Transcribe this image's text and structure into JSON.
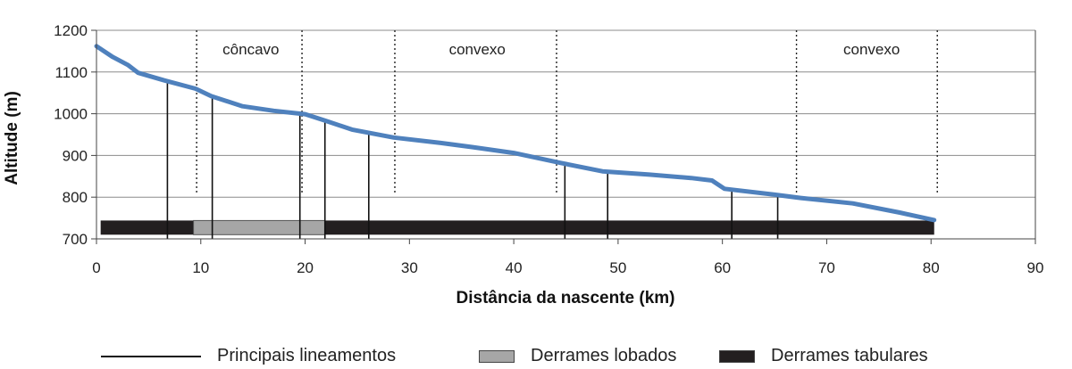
{
  "chart_data": {
    "type": "line",
    "xlabel": "Distância da nascente (km)",
    "ylabel": "Altitude (m)",
    "xlim": [
      0,
      90
    ],
    "ylim": [
      700,
      1200
    ],
    "xticks": [
      0,
      10,
      20,
      30,
      40,
      50,
      60,
      70,
      80,
      90
    ],
    "yticks": [
      700,
      800,
      900,
      1000,
      1100,
      1200
    ],
    "grid": true,
    "colors": {
      "profile": "#4f81bd",
      "tabulares": "#231f20",
      "lobados": "#a6a6a6",
      "lineamentos": "#111111",
      "grid": "#8c8c8c"
    },
    "profile": {
      "x": [
        0,
        1.5,
        3,
        4,
        6.5,
        9.5,
        11,
        14,
        17,
        20,
        22,
        24.5,
        28.5,
        33,
        36,
        40,
        44.5,
        48.5,
        53,
        57,
        59,
        60.2,
        65,
        67.5,
        72.5,
        77,
        80.3
      ],
      "y": [
        1162,
        1137,
        1117,
        1098,
        1080,
        1060,
        1042,
        1018,
        1007,
        999,
        983,
        962,
        943,
        930,
        920,
        906,
        882,
        862,
        854,
        846,
        840,
        820,
        806,
        798,
        785,
        763,
        745
      ]
    },
    "lineamentos": [
      {
        "x": 6.8,
        "top": 1078
      },
      {
        "x": 11.1,
        "top": 1041
      },
      {
        "x": 19.5,
        "top": 999
      },
      {
        "x": 21.9,
        "top": 983
      },
      {
        "x": 26.1,
        "top": 954
      },
      {
        "x": 44.9,
        "top": 880
      },
      {
        "x": 49.0,
        "top": 862
      },
      {
        "x": 60.9,
        "top": 818
      },
      {
        "x": 65.3,
        "top": 804
      }
    ],
    "derrames_tabulares": {
      "from": 0.4,
      "to": 80.3,
      "bottom": 710,
      "top": 744
    },
    "derrames_lobados": {
      "from": 9.3,
      "to": 21.9,
      "bottom": 710,
      "top": 744
    },
    "segment_dividers": [
      9.6,
      19.7,
      28.6,
      44.1,
      67.1,
      80.6
    ],
    "segments": [
      {
        "label": "côncavo",
        "x": 14.8
      },
      {
        "label": "convexo",
        "x": 36.5
      },
      {
        "label": "convexo",
        "x": 74.3
      }
    ],
    "legend": [
      {
        "label": "Principais lineamentos",
        "kind": "line"
      },
      {
        "label": "Derrames lobados",
        "kind": "box",
        "color": "#a6a6a6"
      },
      {
        "label": "Derrames tabulares",
        "kind": "box",
        "color": "#231f20"
      }
    ]
  }
}
